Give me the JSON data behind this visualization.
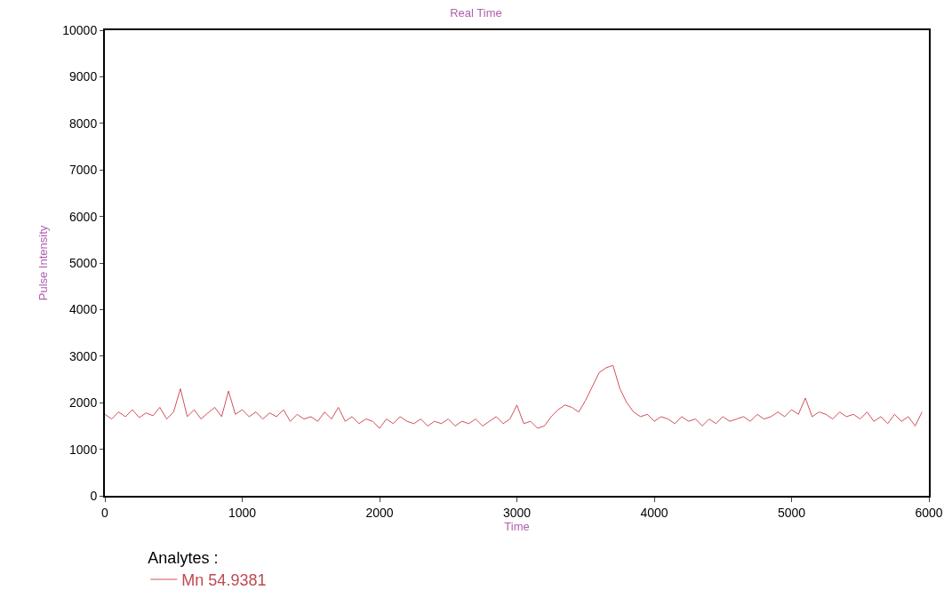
{
  "chart_data": {
    "type": "line",
    "title": "Real Time",
    "xlabel": "Time",
    "ylabel": "Pulse Intensity",
    "legend_title": "Analytes :",
    "legend": "bottom",
    "grid": false,
    "marker": "none",
    "line_style": "solid",
    "xlim": [
      0,
      6000
    ],
    "xticks": [
      0,
      1000,
      2000,
      3000,
      4000,
      5000,
      6000
    ],
    "ylim": [
      0,
      10000
    ],
    "yticks": [
      0,
      1000,
      2000,
      3000,
      4000,
      5000,
      6000,
      7000,
      8000,
      9000,
      10000
    ],
    "x": [
      0,
      50,
      100,
      150,
      200,
      250,
      300,
      350,
      400,
      450,
      500,
      550,
      600,
      650,
      700,
      750,
      800,
      850,
      900,
      950,
      1000,
      1050,
      1100,
      1150,
      1200,
      1250,
      1300,
      1350,
      1400,
      1450,
      1500,
      1550,
      1600,
      1650,
      1700,
      1750,
      1800,
      1850,
      1900,
      1950,
      2000,
      2050,
      2100,
      2150,
      2200,
      2250,
      2300,
      2350,
      2400,
      2450,
      2500,
      2550,
      2600,
      2650,
      2700,
      2750,
      2800,
      2850,
      2900,
      2950,
      3000,
      3050,
      3100,
      3150,
      3200,
      3250,
      3300,
      3350,
      3400,
      3450,
      3500,
      3550,
      3600,
      3650,
      3700,
      3750,
      3800,
      3850,
      3900,
      3950,
      4000,
      4050,
      4100,
      4150,
      4200,
      4250,
      4300,
      4350,
      4400,
      4450,
      4500,
      4550,
      4600,
      4650,
      4700,
      4750,
      4800,
      4850,
      4900,
      4950,
      5000,
      5050,
      5100,
      5150,
      5200,
      5250,
      5300,
      5350,
      5400,
      5450,
      5500,
      5550,
      5600,
      5650,
      5700,
      5750,
      5800,
      5850,
      5900,
      5950
    ],
    "series": [
      {
        "name": "Mn 54.9381",
        "color": "#d0505a",
        "values": [
          1750,
          1650,
          1800,
          1700,
          1850,
          1680,
          1780,
          1720,
          1900,
          1650,
          1800,
          2300,
          1700,
          1850,
          1650,
          1780,
          1900,
          1700,
          2250,
          1750,
          1850,
          1700,
          1800,
          1650,
          1780,
          1700,
          1850,
          1600,
          1750,
          1650,
          1700,
          1600,
          1800,
          1650,
          1900,
          1600,
          1700,
          1550,
          1650,
          1600,
          1450,
          1650,
          1550,
          1700,
          1600,
          1550,
          1650,
          1500,
          1600,
          1550,
          1650,
          1500,
          1600,
          1550,
          1650,
          1500,
          1600,
          1700,
          1550,
          1650,
          1950,
          1550,
          1600,
          1450,
          1500,
          1700,
          1850,
          1950,
          1900,
          1800,
          2050,
          2350,
          2650,
          2750,
          2800,
          2300,
          2000,
          1800,
          1700,
          1750,
          1600,
          1700,
          1650,
          1550,
          1700,
          1600,
          1650,
          1500,
          1650,
          1550,
          1700,
          1600,
          1650,
          1700,
          1600,
          1750,
          1650,
          1700,
          1800,
          1700,
          1850,
          1750,
          2100,
          1700,
          1800,
          1750,
          1650,
          1800,
          1700,
          1750,
          1650,
          1800,
          1600,
          1700,
          1550,
          1750,
          1600,
          1700,
          1500,
          1800
        ]
      }
    ]
  }
}
